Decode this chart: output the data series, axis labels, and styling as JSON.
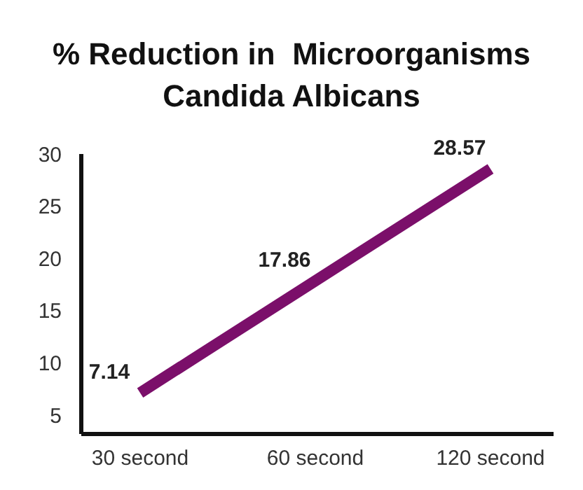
{
  "chart_data": {
    "type": "line",
    "title": "% Reduction in  Microorganisms\nCandida Albicans",
    "categories": [
      "30 second",
      "60 second",
      "120 second"
    ],
    "series": [
      {
        "color": "#7b0f6a",
        "values": [
          7.14,
          17.86,
          28.57
        ]
      }
    ],
    "ylim": [
      3.2,
      30
    ],
    "yticks": [
      5,
      10,
      15,
      20,
      25,
      30
    ],
    "data_labels": true,
    "grid": false
  }
}
